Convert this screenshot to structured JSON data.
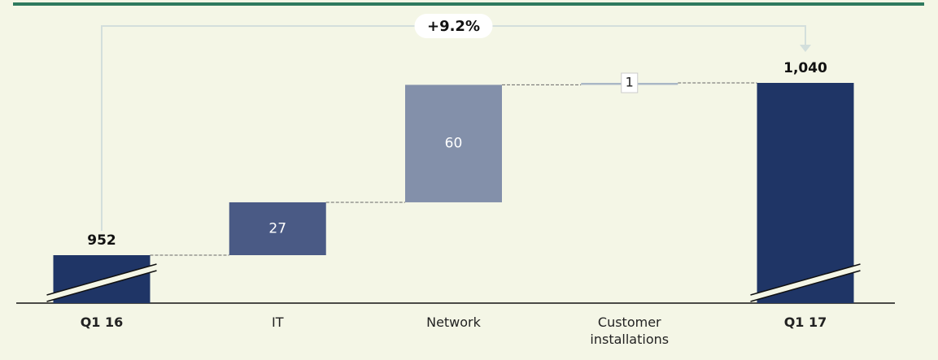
{
  "chart_data": {
    "type": "waterfall",
    "categories": [
      "Q1 16",
      "IT",
      "Network",
      "Customer installations",
      "Q1 17"
    ],
    "measure": [
      "absolute",
      "relative",
      "relative",
      "relative",
      "absolute"
    ],
    "values": [
      952,
      27,
      60,
      1,
      1040
    ],
    "value_labels": [
      "952",
      "27",
      "60",
      "1",
      "1,040"
    ],
    "colors": [
      "#1f3566",
      "#4a5a85",
      "#8390aa",
      "#a9b7c6",
      "#1f3566"
    ],
    "annotation": "+9.2%"
  }
}
